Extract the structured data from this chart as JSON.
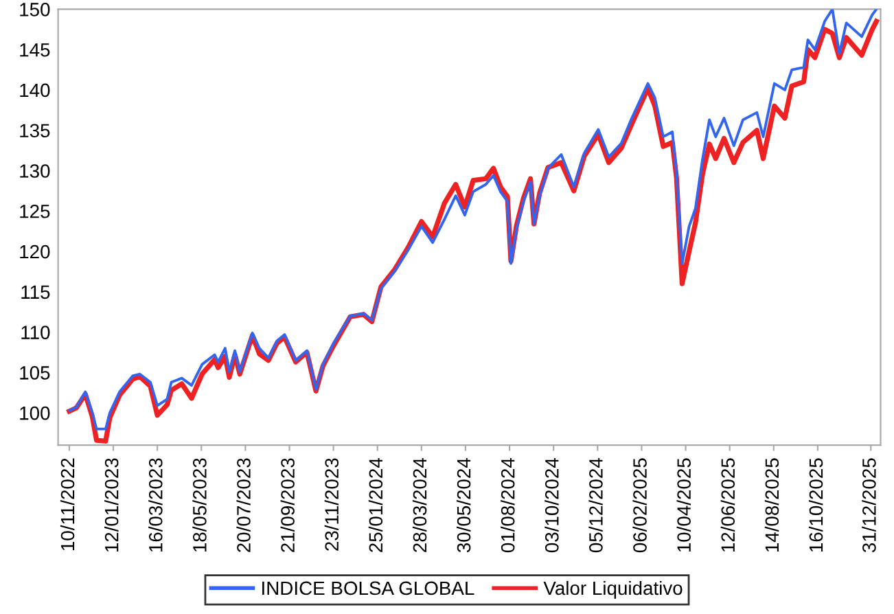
{
  "chart_data": {
    "type": "line",
    "x": [
      "2022-11-10",
      "2022-11-20",
      "2022-12-03",
      "2022-12-13",
      "2022-12-19",
      "2023-01-01",
      "2023-01-07",
      "2023-01-21",
      "2023-02-09",
      "2023-02-19",
      "2023-03-06",
      "2023-03-16",
      "2023-03-30",
      "2023-04-05",
      "2023-04-20",
      "2023-05-04",
      "2023-05-19",
      "2023-06-06",
      "2023-06-11",
      "2023-06-21",
      "2023-06-27",
      "2023-07-05",
      "2023-07-12",
      "2023-07-30",
      "2023-08-09",
      "2023-08-22",
      "2023-09-03",
      "2023-09-14",
      "2023-09-30",
      "2023-10-16",
      "2023-10-29",
      "2023-11-08",
      "2023-11-23",
      "2023-12-17",
      "2024-01-05",
      "2024-01-17",
      "2024-01-30",
      "2024-02-19",
      "2024-03-09",
      "2024-03-28",
      "2024-04-13",
      "2024-04-30",
      "2024-05-16",
      "2024-05-29",
      "2024-06-10",
      "2024-06-28",
      "2024-07-09",
      "2024-07-19",
      "2024-07-29",
      "2024-08-03",
      "2024-08-11",
      "2024-08-21",
      "2024-08-31",
      "2024-09-05",
      "2024-09-13",
      "2024-09-25",
      "2024-10-14",
      "2024-11-01",
      "2024-11-16",
      "2024-12-06",
      "2024-12-21",
      "2025-01-08",
      "2025-01-23",
      "2025-02-15",
      "2025-02-25",
      "2025-03-09",
      "2025-03-22",
      "2025-03-28",
      "2025-04-05",
      "2025-04-15",
      "2025-04-24",
      "2025-05-04",
      "2025-05-14",
      "2025-05-23",
      "2025-06-04",
      "2025-06-18",
      "2025-07-01",
      "2025-07-21",
      "2025-07-30",
      "2025-08-15",
      "2025-08-30",
      "2025-09-09",
      "2025-09-26",
      "2025-10-02",
      "2025-10-12",
      "2025-10-26",
      "2025-11-06",
      "2025-11-16",
      "2025-11-26",
      "2025-12-18",
      "2026-01-02",
      "2026-01-08"
    ],
    "series": [
      {
        "name": "INDICE BOLSA GLOBAL",
        "color": "#3366ee",
        "values": [
          100.3,
          100.7,
          102.6,
          100,
          98,
          98,
          100,
          102.6,
          104.6,
          104.8,
          103.8,
          100.9,
          101.7,
          103.8,
          104.3,
          103.4,
          106,
          107.2,
          106.3,
          108,
          105.1,
          107.7,
          105.1,
          109.9,
          108,
          106.8,
          108.9,
          109.7,
          106.5,
          107.7,
          102.9,
          106,
          108.6,
          112,
          112.3,
          111.5,
          115.4,
          117.6,
          120.2,
          123.1,
          121.1,
          124,
          126.9,
          124.5,
          127.4,
          128.3,
          129.4,
          127.4,
          126.2,
          118.5,
          122.8,
          126.2,
          128.6,
          123.4,
          126.9,
          130.3,
          132,
          128,
          132.2,
          135.1,
          131.7,
          133.4,
          136.5,
          140.8,
          139,
          134.2,
          134.8,
          129.6,
          118.5,
          123.1,
          125.3,
          131.3,
          136.3,
          134.2,
          136.5,
          133.1,
          136.3,
          137.2,
          134.2,
          140.8,
          140,
          142.5,
          142.8,
          146.2,
          145,
          148.5,
          150,
          144.5,
          148.3,
          146.6,
          149.3,
          150
        ]
      },
      {
        "name": "Valor Liquidativo",
        "color": "#ee2222",
        "values": [
          100.2,
          100.6,
          102.3,
          99.5,
          96.6,
          96.5,
          99.4,
          102.2,
          104.2,
          104.5,
          103.3,
          99.7,
          101,
          102.8,
          103.6,
          101.8,
          104.8,
          106.6,
          105.6,
          107,
          104.4,
          107.2,
          104.8,
          109.6,
          107.3,
          106.5,
          108.6,
          109.4,
          106.3,
          107.5,
          102.7,
          105.8,
          108.3,
          111.9,
          112.2,
          111.3,
          115.6,
          117.8,
          120.5,
          123.7,
          121.8,
          126,
          128.3,
          125.5,
          128.8,
          129,
          130.3,
          128,
          126.8,
          118.8,
          123.2,
          126.6,
          129,
          123.4,
          127.2,
          130.4,
          131,
          127.5,
          131.8,
          134.5,
          131,
          132.8,
          135.8,
          140.2,
          138,
          133,
          133.5,
          129.1,
          116,
          120,
          123.5,
          129.5,
          133.3,
          131.5,
          134,
          131,
          133.5,
          135,
          131.5,
          138,
          136.5,
          140.5,
          141,
          145,
          144,
          147.5,
          147,
          144,
          146.5,
          144.3,
          147.5,
          148.5
        ]
      }
    ],
    "xlim": [
      "2022-10-25",
      "2026-01-14"
    ],
    "xticks": [
      {
        "value": "2022-11-10",
        "label": "10/11/2022"
      },
      {
        "value": "2023-01-12",
        "label": "12/01/2023"
      },
      {
        "value": "2023-03-16",
        "label": "16/03/2023"
      },
      {
        "value": "2023-05-18",
        "label": "18/05/2023"
      },
      {
        "value": "2023-07-20",
        "label": "20/07/2023"
      },
      {
        "value": "2023-09-21",
        "label": "21/09/2023"
      },
      {
        "value": "2023-11-23",
        "label": "23/11/2023"
      },
      {
        "value": "2024-01-25",
        "label": "25/01/2024"
      },
      {
        "value": "2024-03-28",
        "label": "28/03/2024"
      },
      {
        "value": "2024-05-30",
        "label": "30/05/2024"
      },
      {
        "value": "2024-08-01",
        "label": "01/08/2024"
      },
      {
        "value": "2024-10-03",
        "label": "03/10/2024"
      },
      {
        "value": "2024-12-05",
        "label": "05/12/2024"
      },
      {
        "value": "2025-02-06",
        "label": "06/02/2025"
      },
      {
        "value": "2025-04-10",
        "label": "10/04/2025"
      },
      {
        "value": "2025-06-12",
        "label": "12/06/2025"
      },
      {
        "value": "2025-08-14",
        "label": "14/08/2025"
      },
      {
        "value": "2025-10-16",
        "label": "16/10/2025"
      },
      {
        "value": "2025-12-31",
        "label": "31/12/2025"
      }
    ],
    "ylim": [
      96,
      150
    ],
    "yticks": [
      100,
      105,
      110,
      115,
      120,
      125,
      130,
      135,
      140,
      145,
      150
    ],
    "legend": "bottom",
    "grid": false
  }
}
